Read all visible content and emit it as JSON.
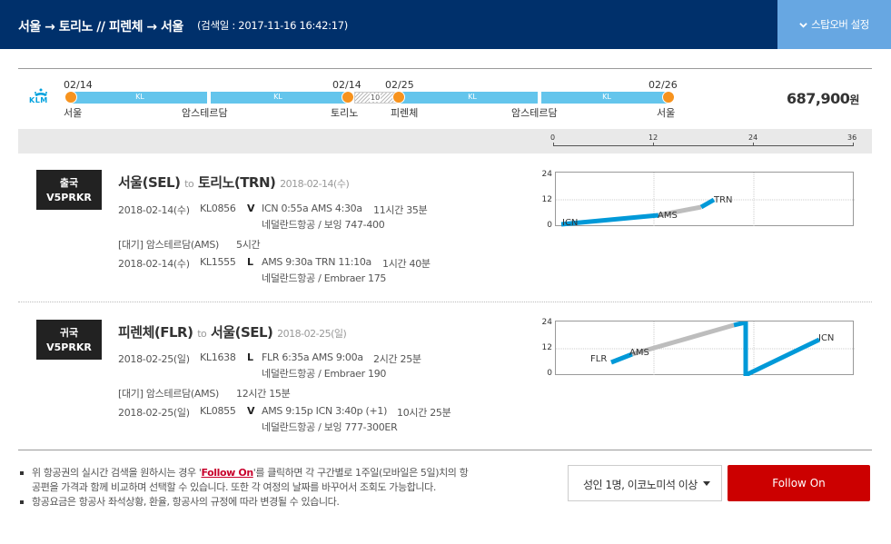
{
  "header": {
    "route": "서울 → 토리노 // 피렌체 → 서울",
    "search_date": "(검색일 : 2017-11-16 16:42:17)",
    "stopover_label": "스탑오버 설정"
  },
  "timeline": {
    "airline_logo": "KLM",
    "segment_code": "KL",
    "layover_days": "10",
    "dates": [
      "02/14",
      "02/14",
      "02/25",
      "02/26"
    ],
    "cities": [
      "서울",
      "암스테르담",
      "토리노",
      "피렌체",
      "암스테르담",
      "서울"
    ]
  },
  "price": {
    "amount": "687,900",
    "unit": "원"
  },
  "scale": {
    "ticks": [
      "0",
      "12",
      "24",
      "36"
    ]
  },
  "legs": [
    {
      "badge_type": "출국",
      "badge_code": "V5PRKR",
      "from": "서울(SEL)",
      "to_word": "to",
      "to": "토리노(TRN)",
      "date": "2018-02-14(수)",
      "flights": [
        {
          "date": "2018-02-14(수)",
          "flight": "KL0856",
          "class": "V",
          "times": "ICN 0:55a AMS 4:30a",
          "duration": "11시간 35분",
          "aircraft": "네덜란드항공 / 보잉 747-400"
        },
        {
          "date": "2018-02-14(수)",
          "flight": "KL1555",
          "class": "L",
          "times": "AMS 9:30a TRN 11:10a",
          "duration": "1시간 40분",
          "aircraft": "네덜란드항공 / Embraer 175"
        }
      ],
      "wait": {
        "label": "[대기] 암스테르담(AMS)",
        "time": "5시간"
      },
      "chart": {
        "y_ticks": [
          "24",
          "12",
          "0"
        ],
        "labels": [
          "ICN",
          "AMS",
          "TRN"
        ]
      }
    },
    {
      "badge_type": "귀국",
      "badge_code": "V5PRKR",
      "from": "피렌체(FLR)",
      "to_word": "to",
      "to": "서울(SEL)",
      "date": "2018-02-25(일)",
      "flights": [
        {
          "date": "2018-02-25(일)",
          "flight": "KL1638",
          "class": "L",
          "times": "FLR 6:35a AMS 9:00a",
          "duration": "2시간 25분",
          "aircraft": "네덜란드항공 / Embraer 190"
        },
        {
          "date": "2018-02-25(일)",
          "flight": "KL0855",
          "class": "V",
          "times": "AMS 9:15p ICN 3:40p (+1)",
          "duration": "10시간 25분",
          "aircraft": "네덜란드항공 / 보잉 777-300ER"
        }
      ],
      "wait": {
        "label": "[대기] 암스테르담(AMS)",
        "time": "12시간 15분"
      },
      "chart": {
        "y_ticks": [
          "24",
          "12",
          "0"
        ],
        "labels": [
          "FLR",
          "AMS",
          "ICN"
        ]
      }
    }
  ],
  "notes": {
    "line1_before": "위 항공권의 실시간 검색을 원하시는 경우 '",
    "line1_link": "Follow On",
    "line1_after": "'를 클릭하면 각 구간별로 1주일(모바일은 5일)치의 항공편을 가격과 함께 비교하며 선택할 수 있습니다. 또한 각 여정의 날짜를 바꾸어서 조회도 가능합니다.",
    "line2": "항공요금은 항공사 좌석상황, 환율, 항공사의 규정에 따라 변경될 수 있습니다."
  },
  "passenger_select": {
    "value": "성인 1명, 이코노미석 이상"
  },
  "follow_button": {
    "label": "Follow On"
  },
  "colors": {
    "header": "#00306b",
    "stopover": "#67a7e2",
    "segment": "#64c5ec",
    "dot": "#f7931e",
    "follow": "#cc0000",
    "flight_line": "#0099d8",
    "wait_line": "#bdbdbd"
  }
}
